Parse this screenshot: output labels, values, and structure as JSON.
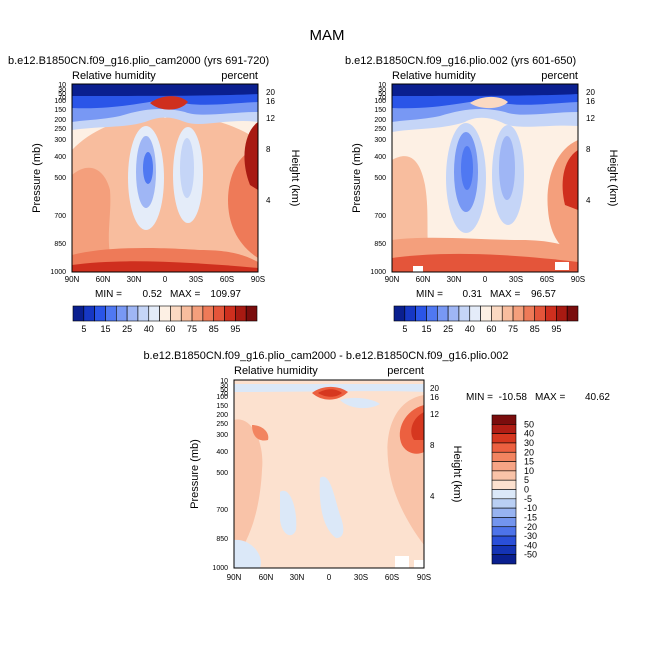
{
  "figure": {
    "title": "MAM"
  },
  "chart_data": [
    {
      "type": "heatmap",
      "title": "b.e12.B1850CN.f09_g16.plio_cam2000 (yrs 691-720)",
      "variable_label": "Relative humidity",
      "units_label": "percent",
      "ylabel": "Pressure (mb)",
      "y2label": "Height (km)",
      "x_ticks": [
        "90N",
        "60N",
        "30N",
        "0",
        "30S",
        "60S",
        "90S"
      ],
      "y_ticks": [
        "10",
        "30",
        "50",
        "70",
        "100",
        "150",
        "200",
        "250",
        "300",
        "400",
        "500",
        "700",
        "850",
        "1000"
      ],
      "y2_ticks": [
        "20",
        "16",
        "12",
        "8",
        "4"
      ],
      "y_scale": "log",
      "ylim": [
        1000,
        10
      ],
      "xlim": [
        "90N",
        "90S"
      ],
      "min_label": "MIN =",
      "min": "0.52",
      "max_label": "MAX =",
      "max": "109.97"
    },
    {
      "type": "heatmap",
      "title": "b.e12.B1850CN.f09_g16.plio.002 (yrs 601-650)",
      "variable_label": "Relative humidity",
      "units_label": "percent",
      "ylabel": "Pressure (mb)",
      "y2label": "Height (km)",
      "x_ticks": [
        "90N",
        "60N",
        "30N",
        "0",
        "30S",
        "60S",
        "90S"
      ],
      "y_ticks": [
        "10",
        "30",
        "50",
        "70",
        "100",
        "150",
        "200",
        "250",
        "300",
        "400",
        "500",
        "700",
        "850",
        "1000"
      ],
      "y2_ticks": [
        "20",
        "16",
        "12",
        "8",
        "4"
      ],
      "y_scale": "log",
      "ylim": [
        1000,
        10
      ],
      "xlim": [
        "90N",
        "90S"
      ],
      "min_label": "MIN =",
      "min": "0.31",
      "max_label": "MAX =",
      "max": "96.57"
    },
    {
      "type": "heatmap",
      "title": "b.e12.B1850CN.f09_g16.plio_cam2000 - b.e12.B1850CN.f09_g16.plio.002",
      "variable_label": "Relative humidity",
      "units_label": "percent",
      "ylabel": "Pressure (mb)",
      "y2label": "Height (km)",
      "x_ticks": [
        "90N",
        "60N",
        "30N",
        "0",
        "30S",
        "60S",
        "90S"
      ],
      "y_ticks": [
        "10",
        "30",
        "50",
        "70",
        "100",
        "150",
        "200",
        "250",
        "300",
        "400",
        "500",
        "700",
        "850",
        "1000"
      ],
      "y2_ticks": [
        "20",
        "16",
        "12",
        "8",
        "4"
      ],
      "y_scale": "log",
      "ylim": [
        1000,
        10
      ],
      "xlim": [
        "90N",
        "90S"
      ],
      "min_label": "MIN =",
      "min": "-10.58",
      "max_label": "MAX =",
      "max": "40.62"
    }
  ],
  "colorbars": {
    "absolute": {
      "labels": [
        "5",
        "15",
        "25",
        "40",
        "60",
        "75",
        "85",
        "95"
      ],
      "colors": [
        "#0a1f8f",
        "#1637c4",
        "#2a55e8",
        "#4f78f2",
        "#7898f4",
        "#9fb6f5",
        "#c5d5f7",
        "#e4ecf9",
        "#fdf0e4",
        "#fbd9c2",
        "#f8bd9e",
        "#f49f7c",
        "#ee7a58",
        "#e4553a",
        "#cf2f1e",
        "#a81a12",
        "#7a0d0d"
      ]
    },
    "difference": {
      "labels": [
        "50",
        "40",
        "30",
        "20",
        "15",
        "10",
        "5",
        "0",
        "-5",
        "-10",
        "-15",
        "-20",
        "-30",
        "-40",
        "-50"
      ],
      "colors": [
        "#7a0d0d",
        "#b01d14",
        "#d6371f",
        "#ec6040",
        "#f28460",
        "#f6a485",
        "#f9c3a8",
        "#fce1cf",
        "#dbe8f8",
        "#b9cff4",
        "#97b3f1",
        "#7395ee",
        "#4d73e9",
        "#2a4fd8",
        "#1433b4",
        "#0a1f8f"
      ]
    }
  }
}
